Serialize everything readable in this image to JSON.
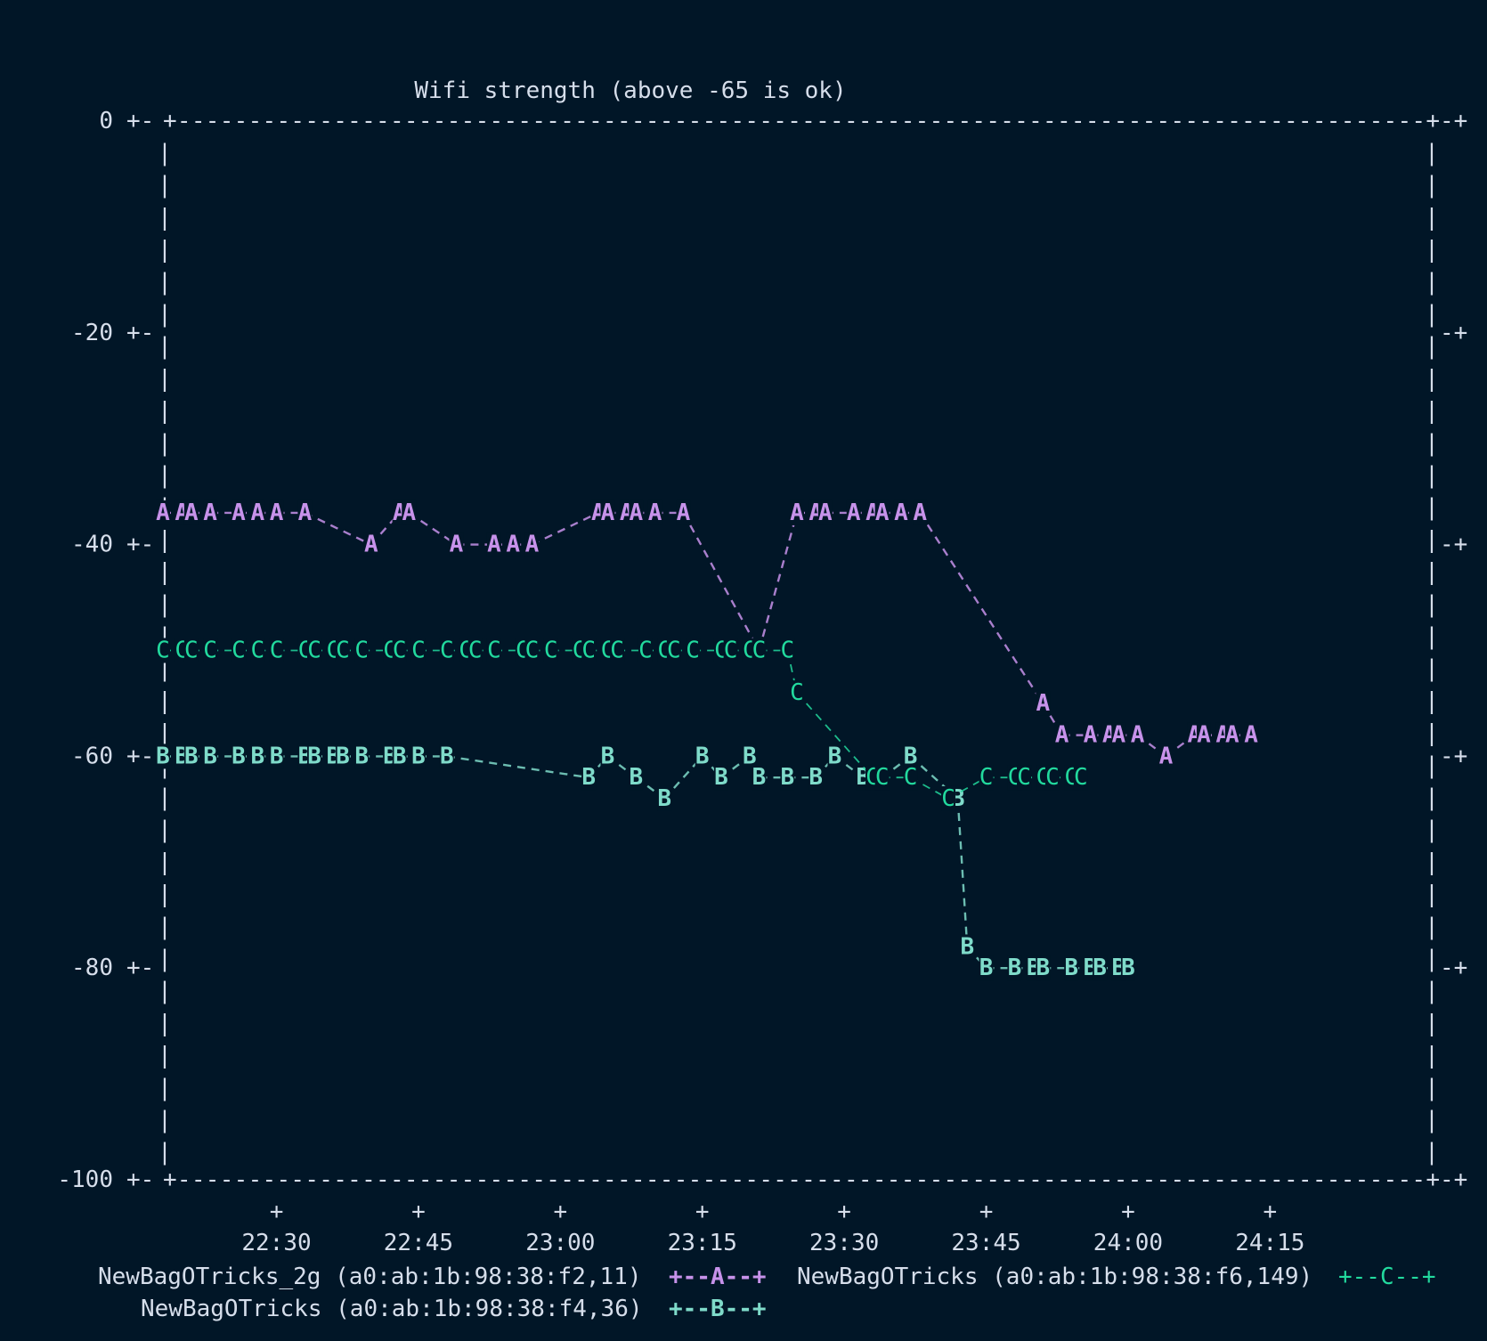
{
  "colors": {
    "background": "#011627",
    "text": "#d6deeb",
    "series_a": "#c792ea",
    "series_b": "#7fdbca",
    "series_c": "#22da9e"
  },
  "chart_data": {
    "type": "line",
    "style": "ascii-terminal",
    "title": "Wifi strength (above -65 is ok)",
    "ylim": [
      -100,
      0
    ],
    "yticks": [
      0,
      -20,
      -40,
      -60,
      -80,
      -100
    ],
    "xlim": [
      "22:18",
      "24:32"
    ],
    "xticks": [
      "22:30",
      "22:45",
      "23:00",
      "23:15",
      "23:30",
      "23:45",
      "24:00",
      "24:15"
    ],
    "grid": false,
    "legend_position": "bottom",
    "series": [
      {
        "name": "NewBagOTricks_2g (a0:ab:1b:98:38:f2,11)",
        "legend_key": "+--A--+",
        "marker": "A",
        "color": "#c792ea",
        "points": [
          {
            "x": "22:18",
            "y": -37
          },
          {
            "x": "22:20",
            "y": -37
          },
          {
            "x": "22:21",
            "y": -37
          },
          {
            "x": "22:23",
            "y": -37
          },
          {
            "x": "22:26",
            "y": -37
          },
          {
            "x": "22:28",
            "y": -37
          },
          {
            "x": "22:30",
            "y": -37
          },
          {
            "x": "22:33",
            "y": -37
          },
          {
            "x": "22:40",
            "y": -40
          },
          {
            "x": "22:43",
            "y": -37
          },
          {
            "x": "22:44",
            "y": -37
          },
          {
            "x": "22:49",
            "y": -40
          },
          {
            "x": "22:53",
            "y": -40
          },
          {
            "x": "22:55",
            "y": -40
          },
          {
            "x": "22:57",
            "y": -40
          },
          {
            "x": "23:04",
            "y": -37
          },
          {
            "x": "23:05",
            "y": -37
          },
          {
            "x": "23:07",
            "y": -37
          },
          {
            "x": "23:08",
            "y": -37
          },
          {
            "x": "23:10",
            "y": -37
          },
          {
            "x": "23:13",
            "y": -37
          },
          {
            "x": "23:21",
            "y": -50
          },
          {
            "x": "23:25",
            "y": -37
          },
          {
            "x": "23:27",
            "y": -37
          },
          {
            "x": "23:28",
            "y": -37
          },
          {
            "x": "23:31",
            "y": -37
          },
          {
            "x": "23:33",
            "y": -37
          },
          {
            "x": "23:34",
            "y": -37
          },
          {
            "x": "23:36",
            "y": -37
          },
          {
            "x": "23:38",
            "y": -37
          },
          {
            "x": "23:51",
            "y": -55
          },
          {
            "x": "23:53",
            "y": -58
          },
          {
            "x": "23:56",
            "y": -58
          },
          {
            "x": "23:58",
            "y": -58
          },
          {
            "x": "23:59",
            "y": -58
          },
          {
            "x": "24:01",
            "y": -58
          },
          {
            "x": "24:04",
            "y": -60
          },
          {
            "x": "24:07",
            "y": -58
          },
          {
            "x": "24:08",
            "y": -58
          },
          {
            "x": "24:10",
            "y": -58
          },
          {
            "x": "24:11",
            "y": -58
          },
          {
            "x": "24:13",
            "y": -58
          }
        ]
      },
      {
        "name": "NewBagOTricks (a0:ab:1b:98:38:f4,36)",
        "legend_key": "+--B--+",
        "marker": "B",
        "color": "#7fdbca",
        "points": [
          {
            "x": "22:18",
            "y": -60
          },
          {
            "x": "22:20",
            "y": -60
          },
          {
            "x": "22:21",
            "y": -60
          },
          {
            "x": "22:23",
            "y": -60
          },
          {
            "x": "22:26",
            "y": -60
          },
          {
            "x": "22:28",
            "y": -60
          },
          {
            "x": "22:30",
            "y": -60
          },
          {
            "x": "22:33",
            "y": -60
          },
          {
            "x": "22:34",
            "y": -60
          },
          {
            "x": "22:36",
            "y": -60
          },
          {
            "x": "22:37",
            "y": -60
          },
          {
            "x": "22:39",
            "y": -60
          },
          {
            "x": "22:42",
            "y": -60
          },
          {
            "x": "22:43",
            "y": -60
          },
          {
            "x": "22:45",
            "y": -60
          },
          {
            "x": "22:48",
            "y": -60
          },
          {
            "x": "23:03",
            "y": -62
          },
          {
            "x": "23:05",
            "y": -60
          },
          {
            "x": "23:08",
            "y": -62
          },
          {
            "x": "23:11",
            "y": -64
          },
          {
            "x": "23:15",
            "y": -60
          },
          {
            "x": "23:17",
            "y": -62
          },
          {
            "x": "23:20",
            "y": -60
          },
          {
            "x": "23:21",
            "y": -62
          },
          {
            "x": "23:24",
            "y": -62
          },
          {
            "x": "23:27",
            "y": -62
          },
          {
            "x": "23:29",
            "y": -60
          },
          {
            "x": "23:32",
            "y": -62
          },
          {
            "x": "23:34",
            "y": -62
          },
          {
            "x": "23:37",
            "y": -60
          },
          {
            "x": "23:42",
            "y": -64
          },
          {
            "x": "23:43",
            "y": -78
          },
          {
            "x": "23:45",
            "y": -80
          },
          {
            "x": "23:48",
            "y": -80
          },
          {
            "x": "23:50",
            "y": -80
          },
          {
            "x": "23:51",
            "y": -80
          },
          {
            "x": "23:54",
            "y": -80
          },
          {
            "x": "23:56",
            "y": -80
          },
          {
            "x": "23:57",
            "y": -80
          },
          {
            "x": "23:59",
            "y": -80
          },
          {
            "x": "24:00",
            "y": -80
          }
        ]
      },
      {
        "name": "NewBagOTricks (a0:ab:1b:98:38:f6,149)",
        "legend_key": "+--C--+",
        "marker": "C",
        "color": "#22da9e",
        "points": [
          {
            "x": "22:18",
            "y": -50
          },
          {
            "x": "22:20",
            "y": -50
          },
          {
            "x": "22:21",
            "y": -50
          },
          {
            "x": "22:23",
            "y": -50
          },
          {
            "x": "22:26",
            "y": -50
          },
          {
            "x": "22:28",
            "y": -50
          },
          {
            "x": "22:30",
            "y": -50
          },
          {
            "x": "22:33",
            "y": -50
          },
          {
            "x": "22:34",
            "y": -50
          },
          {
            "x": "22:36",
            "y": -50
          },
          {
            "x": "22:37",
            "y": -50
          },
          {
            "x": "22:39",
            "y": -50
          },
          {
            "x": "22:42",
            "y": -50
          },
          {
            "x": "22:43",
            "y": -50
          },
          {
            "x": "22:45",
            "y": -50
          },
          {
            "x": "22:48",
            "y": -50
          },
          {
            "x": "22:50",
            "y": -50
          },
          {
            "x": "22:51",
            "y": -50
          },
          {
            "x": "22:53",
            "y": -50
          },
          {
            "x": "22:56",
            "y": -50
          },
          {
            "x": "22:57",
            "y": -50
          },
          {
            "x": "22:59",
            "y": -50
          },
          {
            "x": "23:02",
            "y": -50
          },
          {
            "x": "23:03",
            "y": -50
          },
          {
            "x": "23:05",
            "y": -50
          },
          {
            "x": "23:06",
            "y": -50
          },
          {
            "x": "23:09",
            "y": -50
          },
          {
            "x": "23:11",
            "y": -50
          },
          {
            "x": "23:12",
            "y": -50
          },
          {
            "x": "23:14",
            "y": -50
          },
          {
            "x": "23:17",
            "y": -50
          },
          {
            "x": "23:18",
            "y": -50
          },
          {
            "x": "23:20",
            "y": -50
          },
          {
            "x": "23:21",
            "y": -50
          },
          {
            "x": "23:24",
            "y": -50
          },
          {
            "x": "23:25",
            "y": -54
          },
          {
            "x": "23:33",
            "y": -62
          },
          {
            "x": "23:34",
            "y": -62
          },
          {
            "x": "23:37",
            "y": -62
          },
          {
            "x": "23:41",
            "y": -64
          },
          {
            "x": "23:45",
            "y": -62
          },
          {
            "x": "23:48",
            "y": -62
          },
          {
            "x": "23:49",
            "y": -62
          },
          {
            "x": "23:51",
            "y": -62
          },
          {
            "x": "23:52",
            "y": -62
          },
          {
            "x": "23:54",
            "y": -62
          },
          {
            "x": "23:55",
            "y": -62
          }
        ]
      }
    ]
  }
}
